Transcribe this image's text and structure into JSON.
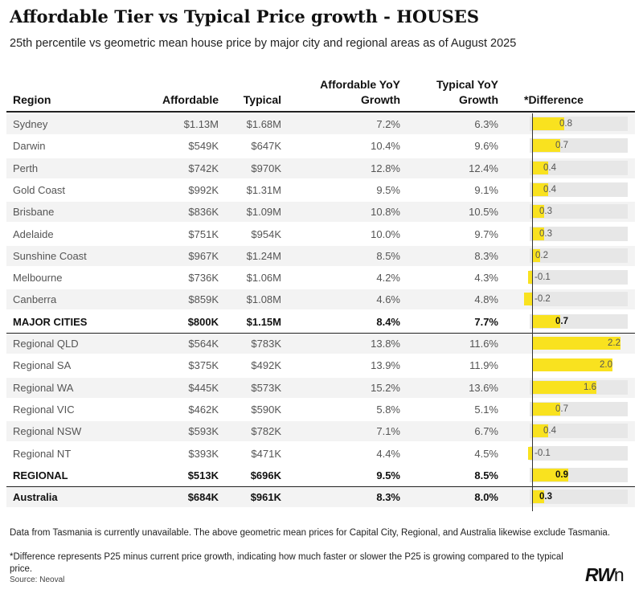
{
  "title": "Affordable Tier vs Typical Price growth - HOUSES",
  "subtitle": "25th percentile vs geometric mean house price by major city and regional areas as of August 2025",
  "columns": {
    "region": "Region",
    "affordable": "Affordable",
    "typical": "Typical",
    "affordable_growth_1": "Affordable YoY",
    "affordable_growth_2": "Growth",
    "typical_growth_1": "Typical YoY",
    "typical_growth_2": "Growth",
    "difference": "*Difference"
  },
  "chart_data": {
    "type": "table",
    "title": "Affordable Tier vs Typical Price growth - HOUSES",
    "headers": [
      "Region",
      "Affordable",
      "Typical",
      "Affordable YoY Growth",
      "Typical YoY Growth",
      "*Difference"
    ],
    "rows": [
      {
        "region": "Sydney",
        "affordable": "$1.13M",
        "typical": "$1.68M",
        "aff_growth": "7.2%",
        "typ_growth": "6.3%",
        "diff": 0.8,
        "diff_label": "0.8",
        "bold": false,
        "shaded": true
      },
      {
        "region": "Darwin",
        "affordable": "$549K",
        "typical": "$647K",
        "aff_growth": "10.4%",
        "typ_growth": "9.6%",
        "diff": 0.7,
        "diff_label": "0.7",
        "bold": false,
        "shaded": false
      },
      {
        "region": "Perth",
        "affordable": "$742K",
        "typical": "$970K",
        "aff_growth": "12.8%",
        "typ_growth": "12.4%",
        "diff": 0.4,
        "diff_label": "0.4",
        "bold": false,
        "shaded": true
      },
      {
        "region": "Gold Coast",
        "affordable": "$992K",
        "typical": "$1.31M",
        "aff_growth": "9.5%",
        "typ_growth": "9.1%",
        "diff": 0.4,
        "diff_label": "0.4",
        "bold": false,
        "shaded": false
      },
      {
        "region": "Brisbane",
        "affordable": "$836K",
        "typical": "$1.09M",
        "aff_growth": "10.8%",
        "typ_growth": "10.5%",
        "diff": 0.3,
        "diff_label": "0.3",
        "bold": false,
        "shaded": true
      },
      {
        "region": "Adelaide",
        "affordable": "$751K",
        "typical": "$954K",
        "aff_growth": "10.0%",
        "typ_growth": "9.7%",
        "diff": 0.3,
        "diff_label": "0.3",
        "bold": false,
        "shaded": false
      },
      {
        "region": "Sunshine Coast",
        "affordable": "$967K",
        "typical": "$1.24M",
        "aff_growth": "8.5%",
        "typ_growth": "8.3%",
        "diff": 0.2,
        "diff_label": "0.2",
        "bold": false,
        "shaded": true
      },
      {
        "region": "Melbourne",
        "affordable": "$736K",
        "typical": "$1.06M",
        "aff_growth": "4.2%",
        "typ_growth": "4.3%",
        "diff": -0.1,
        "diff_label": "-0.1",
        "bold": false,
        "shaded": false
      },
      {
        "region": "Canberra",
        "affordable": "$859K",
        "typical": "$1.08M",
        "aff_growth": "4.6%",
        "typ_growth": "4.8%",
        "diff": -0.2,
        "diff_label": "-0.2",
        "bold": false,
        "shaded": true
      },
      {
        "region": "MAJOR CITIES",
        "affordable": "$800K",
        "typical": "$1.15M",
        "aff_growth": "8.4%",
        "typ_growth": "7.7%",
        "diff": 0.7,
        "diff_label": "0.7",
        "bold": true,
        "shaded": false
      },
      {
        "region": "Regional QLD",
        "affordable": "$564K",
        "typical": "$783K",
        "aff_growth": "13.8%",
        "typ_growth": "11.6%",
        "diff": 2.2,
        "diff_label": "2.2",
        "bold": false,
        "shaded": true
      },
      {
        "region": "Regional SA",
        "affordable": "$375K",
        "typical": "$492K",
        "aff_growth": "13.9%",
        "typ_growth": "11.9%",
        "diff": 2.0,
        "diff_label": "2.0",
        "bold": false,
        "shaded": false
      },
      {
        "region": "Regional WA",
        "affordable": "$445K",
        "typical": "$573K",
        "aff_growth": "15.2%",
        "typ_growth": "13.6%",
        "diff": 1.6,
        "diff_label": "1.6",
        "bold": false,
        "shaded": true
      },
      {
        "region": "Regional VIC",
        "affordable": "$462K",
        "typical": "$590K",
        "aff_growth": "5.8%",
        "typ_growth": "5.1%",
        "diff": 0.7,
        "diff_label": "0.7",
        "bold": false,
        "shaded": false
      },
      {
        "region": "Regional NSW",
        "affordable": "$593K",
        "typical": "$782K",
        "aff_growth": "7.1%",
        "typ_growth": "6.7%",
        "diff": 0.4,
        "diff_label": "0.4",
        "bold": false,
        "shaded": true
      },
      {
        "region": "Regional NT",
        "affordable": "$393K",
        "typical": "$471K",
        "aff_growth": "4.4%",
        "typ_growth": "4.5%",
        "diff": -0.1,
        "diff_label": "-0.1",
        "bold": false,
        "shaded": false
      },
      {
        "region": "REGIONAL",
        "affordable": "$513K",
        "typical": "$696K",
        "aff_growth": "9.5%",
        "typ_growth": "8.5%",
        "diff": 0.9,
        "diff_label": "0.9",
        "bold": true,
        "shaded": false
      },
      {
        "region": "Australia",
        "affordable": "$684K",
        "typical": "$961K",
        "aff_growth": "8.3%",
        "typ_growth": "8.0%",
        "diff": 0.3,
        "diff_label": "0.3",
        "bold": true,
        "shaded": true
      }
    ],
    "diff_range": [
      -0.2,
      2.2
    ]
  },
  "footnotes": {
    "note1": "Data from Tasmania is currently unavailable. The above geometric mean prices for Capital City, Regional, and Australia likewise exclude Tasmania.",
    "note2": "*Difference represents P25 minus current price growth, indicating how much faster or slower the P25 is growing compared to the typical price.",
    "source": "Source: Neoval"
  },
  "logo": {
    "main": "RW",
    "suffix": "n"
  },
  "colors": {
    "bar": "#f9e21f",
    "track": "#e7e7e7",
    "row_shade": "#f3f3f3"
  }
}
